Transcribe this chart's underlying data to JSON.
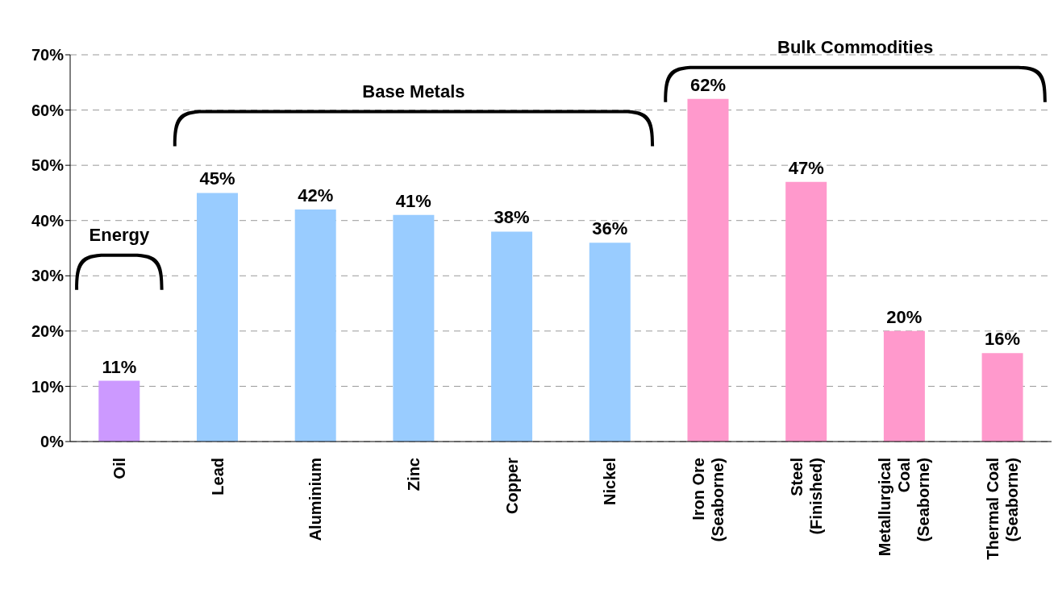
{
  "chart_data": {
    "type": "bar",
    "categories": [
      "Oil",
      "Lead",
      "Aluminium",
      "Zinc",
      "Copper",
      "Nickel",
      "Iron Ore\n(Seaborne)",
      "Steel\n(Finished)",
      "Metallurgical\nCoal\n(Seaborne)",
      "Thermal Coal\n(Seaborne)"
    ],
    "values": [
      11,
      45,
      42,
      41,
      38,
      36,
      62,
      47,
      20,
      16
    ],
    "colors": [
      "#cc99ff",
      "#99ccff",
      "#99ccff",
      "#99ccff",
      "#99ccff",
      "#99ccff",
      "#ff99cc",
      "#ff99cc",
      "#ff99cc",
      "#ff99cc"
    ],
    "value_labels": [
      "11%",
      "45%",
      "42%",
      "41%",
      "38%",
      "36%",
      "62%",
      "47%",
      "20%",
      "16%"
    ],
    "ylim": [
      0,
      70
    ],
    "yticks": [
      {
        "value": 0,
        "label": "0%"
      },
      {
        "value": 10,
        "label": "10%"
      },
      {
        "value": 20,
        "label": "20%"
      },
      {
        "value": 30,
        "label": "30%"
      },
      {
        "value": 40,
        "label": "40%"
      },
      {
        "value": 50,
        "label": "50%"
      },
      {
        "value": 60,
        "label": "60%"
      },
      {
        "value": 70,
        "label": "70%"
      }
    ],
    "grid": "y",
    "annotations": [
      "Energy",
      "Base Metals",
      "Bulk Commodities"
    ]
  }
}
